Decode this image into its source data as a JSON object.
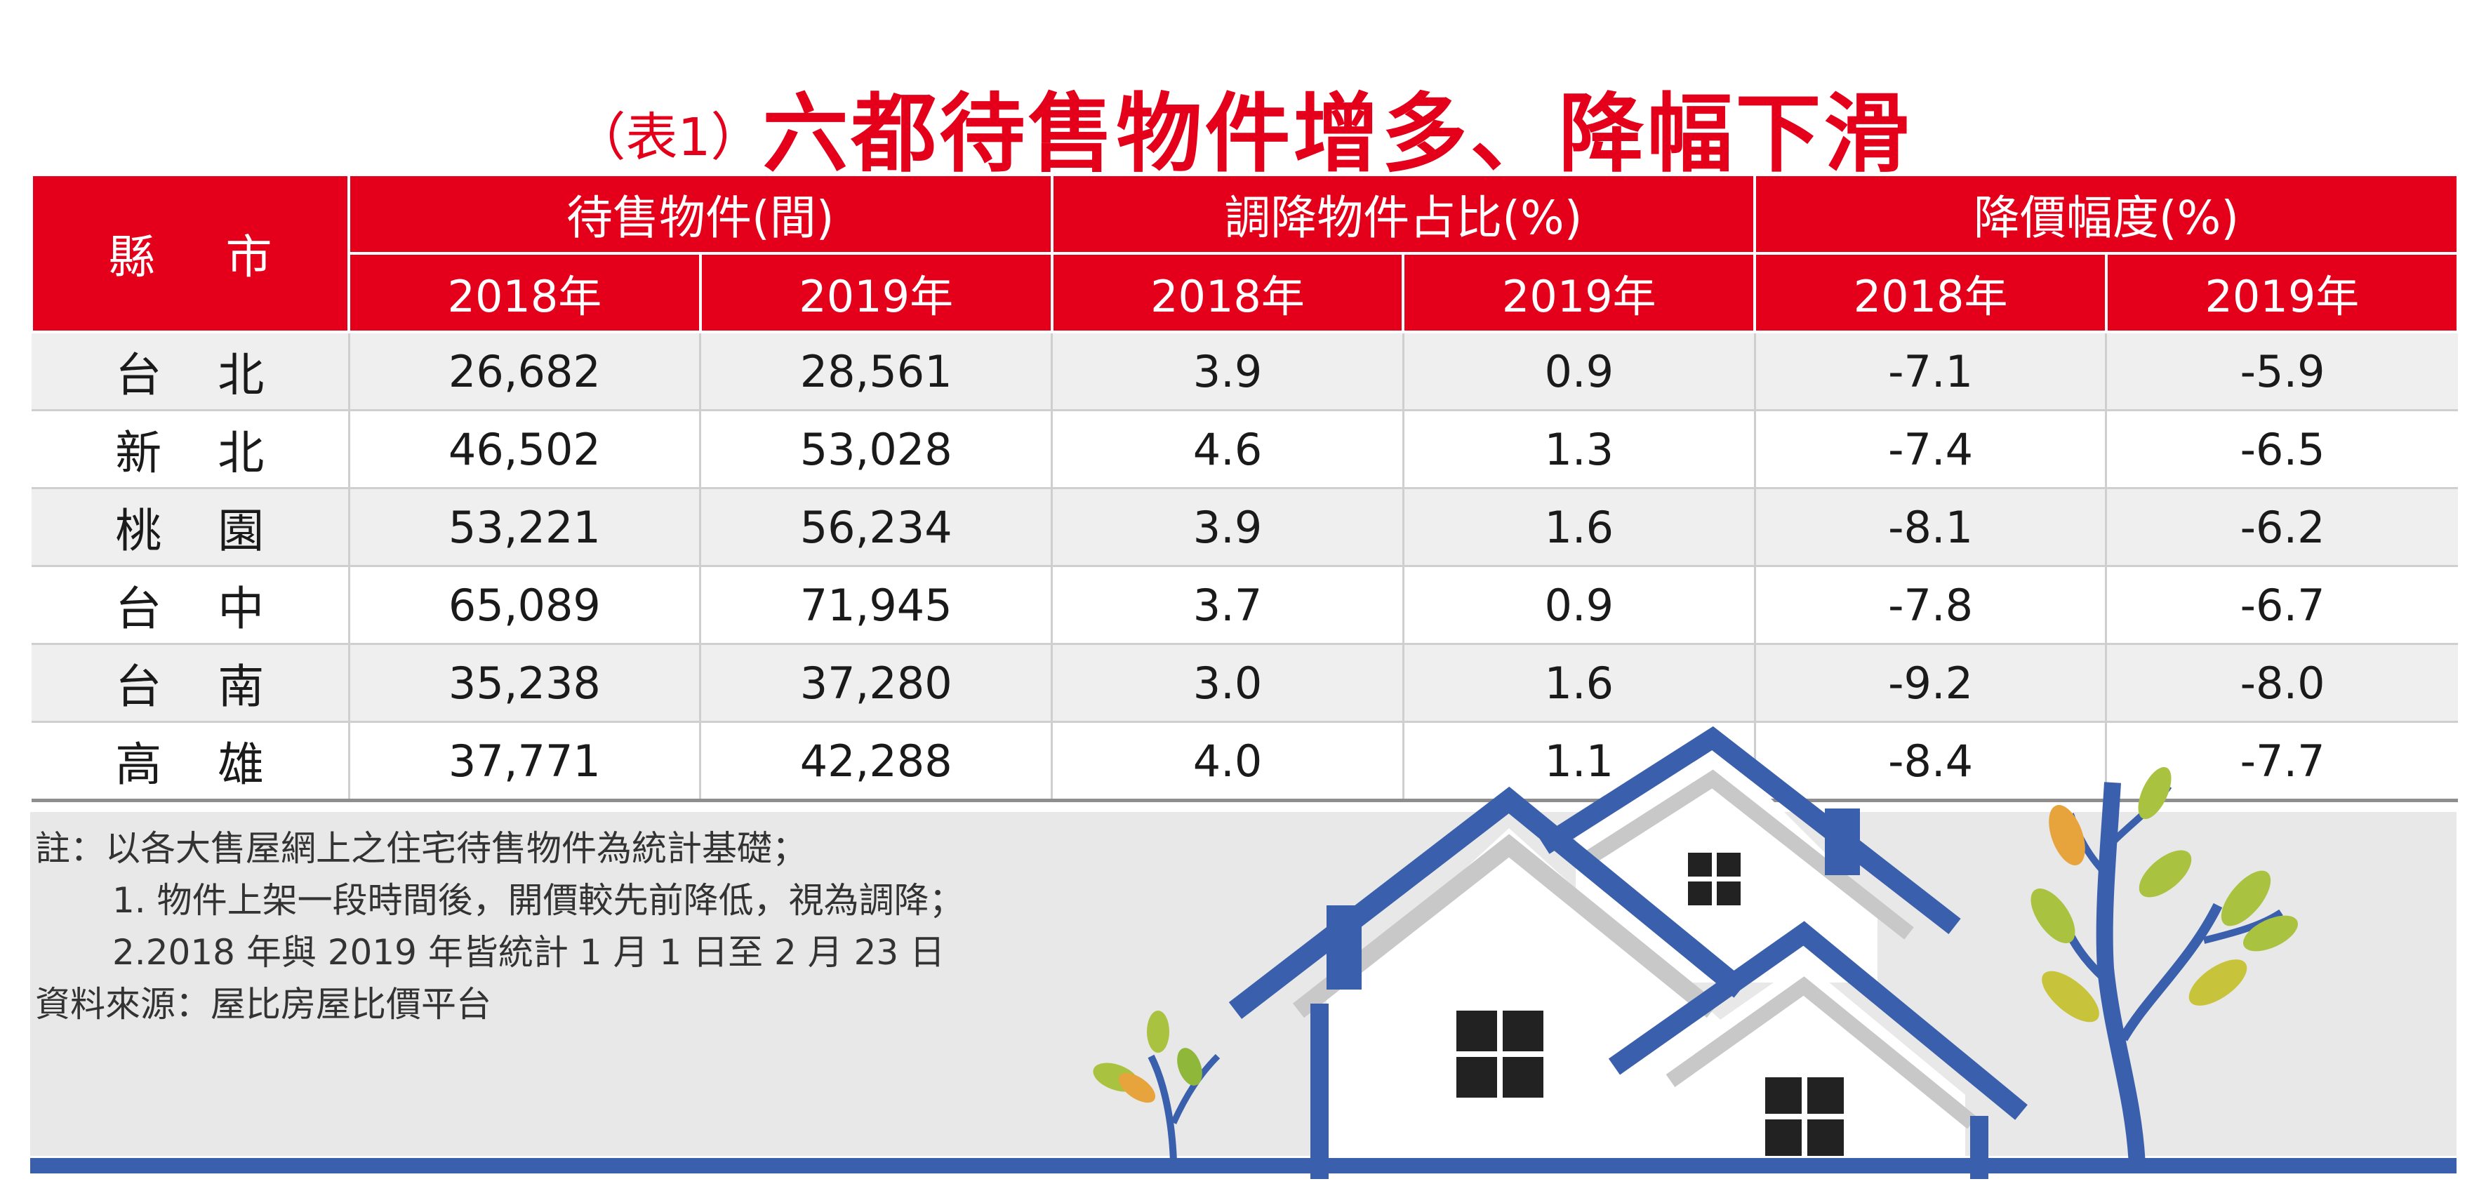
{
  "title": {
    "prefix": "（表1）",
    "main": "六都待售物件增多、降幅下滑"
  },
  "table": {
    "county_header": "縣 市",
    "group_headers": [
      "待售物件(間)",
      "調降物件占比(%)",
      "降價幅度(%)"
    ],
    "year_headers": [
      "2018年",
      "2019年",
      "2018年",
      "2019年",
      "2018年",
      "2019年"
    ],
    "rows": [
      {
        "county": "台北",
        "values": [
          "26,682",
          "28,561",
          "3.9",
          "0.9",
          "-7.1",
          "-5.9"
        ]
      },
      {
        "county": "新北",
        "values": [
          "46,502",
          "53,028",
          "4.6",
          "1.3",
          "-7.4",
          "-6.5"
        ]
      },
      {
        "county": "桃園",
        "values": [
          "53,221",
          "56,234",
          "3.9",
          "1.6",
          "-8.1",
          "-6.2"
        ]
      },
      {
        "county": "台中",
        "values": [
          "65,089",
          "71,945",
          "3.7",
          "0.9",
          "-7.8",
          "-6.7"
        ]
      },
      {
        "county": "台南",
        "values": [
          "35,238",
          "37,280",
          "3.0",
          "1.6",
          "-9.2",
          "-8.0"
        ]
      },
      {
        "county": "高雄",
        "values": [
          "37,771",
          "42,288",
          "4.0",
          "1.1",
          "-8.4",
          "-7.7"
        ]
      }
    ]
  },
  "notes": {
    "line1": "註：以各大售屋網上之住宅待售物件為統計基礎；",
    "line2": "1. 物件上架一段時間後，開價較先前降低，視為調降；",
    "line3": "2.2018 年與 2019 年皆統計 1 月 1 日至 2 月 23 日",
    "source": "資料來源：屋比房屋比價平台"
  },
  "colors": {
    "header_red": "#e4001b",
    "roof_blue": "#3a5fad",
    "row_gray": "#efefef",
    "panel_gray": "#e8e8e8"
  },
  "illustration": {
    "icons": [
      "house-icon",
      "tree-icon",
      "sprout-icon"
    ]
  },
  "chart_data": {
    "type": "table",
    "title": "六都待售物件增多、降幅下滑",
    "columns": [
      "縣 市",
      "待售物件(間) 2018年",
      "待售物件(間) 2019年",
      "調降物件占比(%) 2018年",
      "調降物件占比(%) 2019年",
      "降價幅度(%) 2018年",
      "降價幅度(%) 2019年"
    ],
    "rows": [
      [
        "台北",
        26682,
        28561,
        3.9,
        0.9,
        -7.1,
        -5.9
      ],
      [
        "新北",
        46502,
        53028,
        4.6,
        1.3,
        -7.4,
        -6.5
      ],
      [
        "桃園",
        53221,
        56234,
        3.9,
        1.6,
        -8.1,
        -6.2
      ],
      [
        "台中",
        65089,
        71945,
        3.7,
        0.9,
        -7.8,
        -6.7
      ],
      [
        "台南",
        35238,
        37280,
        3.0,
        1.6,
        -9.2,
        -8.0
      ],
      [
        "高雄",
        37771,
        42288,
        4.0,
        1.1,
        -8.4,
        -7.7
      ]
    ]
  }
}
